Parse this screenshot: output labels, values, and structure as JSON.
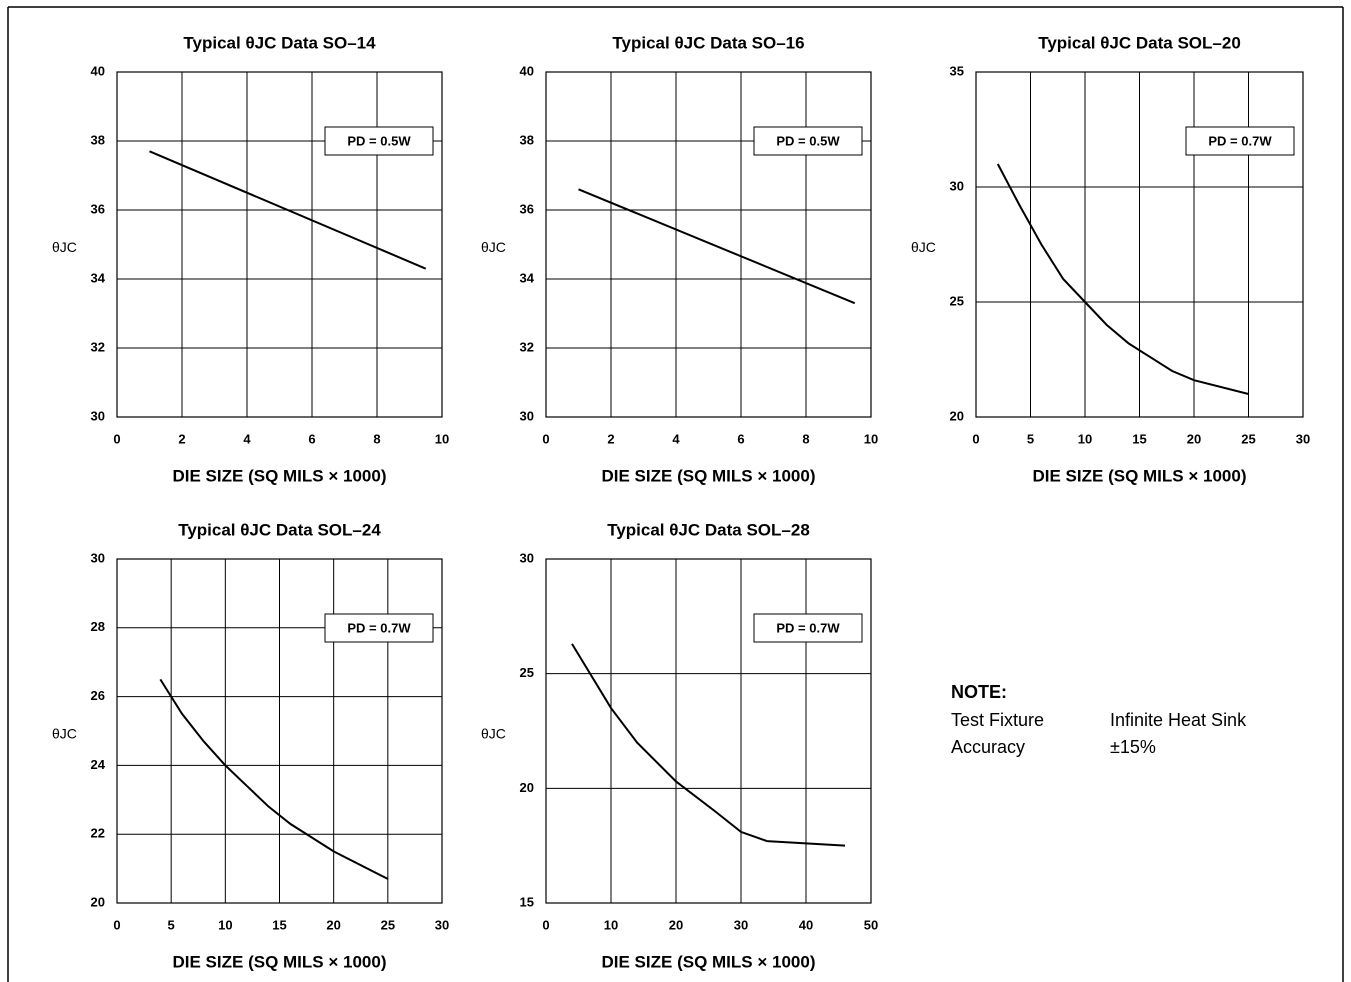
{
  "chart_data": [
    {
      "type": "line",
      "title": "Typical θJC Data SO–14",
      "xlabel": "DIE SIZE (SQ MILS × 1000)",
      "ylabel": "θJC",
      "annotation": "PD = 0.5W",
      "x": [
        1,
        9.5
      ],
      "series": [
        {
          "color": "#000000",
          "values": [
            37.7,
            34.3
          ]
        }
      ],
      "xlim": [
        0,
        10
      ],
      "xticks": [
        0,
        2,
        4,
        6,
        8,
        10
      ],
      "ylim": [
        30,
        40
      ],
      "yticks": [
        30,
        32,
        34,
        36,
        38,
        40
      ],
      "grid": true
    },
    {
      "type": "line",
      "title": "Typical θJC Data SO–16",
      "xlabel": "DIE SIZE (SQ MILS × 1000)",
      "ylabel": "θJC",
      "annotation": "PD = 0.5W",
      "x": [
        1,
        9.5
      ],
      "series": [
        {
          "color": "#000000",
          "values": [
            36.6,
            33.3
          ]
        }
      ],
      "xlim": [
        0,
        10
      ],
      "xticks": [
        0,
        2,
        4,
        6,
        8,
        10
      ],
      "ylim": [
        30,
        40
      ],
      "yticks": [
        30,
        32,
        34,
        36,
        38,
        40
      ],
      "grid": true
    },
    {
      "type": "line",
      "title": "Typical θJC Data SOL–20",
      "xlabel": "DIE SIZE (SQ MILS × 1000)",
      "ylabel": "θJC",
      "annotation": "PD = 0.7W",
      "x": [
        2,
        4,
        6,
        8,
        10,
        12,
        14,
        16,
        18,
        20,
        25
      ],
      "series": [
        {
          "color": "#000000",
          "values": [
            31,
            29.2,
            27.5,
            26,
            25,
            24,
            23.2,
            22.6,
            22,
            21.6,
            21
          ]
        }
      ],
      "xlim": [
        0,
        30
      ],
      "xticks": [
        0,
        5,
        10,
        15,
        20,
        25,
        30
      ],
      "ylim": [
        20,
        35
      ],
      "yticks": [
        20,
        25,
        30,
        35
      ],
      "grid": true
    },
    {
      "type": "line",
      "title": "Typical θJC Data SOL–24",
      "xlabel": "DIE SIZE (SQ MILS × 1000)",
      "ylabel": "θJC",
      "annotation": "PD = 0.7W",
      "x": [
        4,
        6,
        8,
        10,
        12,
        14,
        16,
        20,
        25
      ],
      "series": [
        {
          "color": "#000000",
          "values": [
            26.5,
            25.5,
            24.7,
            24,
            23.4,
            22.8,
            22.3,
            21.5,
            20.7
          ]
        }
      ],
      "xlim": [
        0,
        30
      ],
      "xticks": [
        0,
        5,
        10,
        15,
        20,
        25,
        30
      ],
      "ylim": [
        20,
        30
      ],
      "yticks": [
        20,
        22,
        24,
        26,
        28,
        30
      ],
      "grid": true
    },
    {
      "type": "line",
      "title": "Typical θJC Data SOL–28",
      "xlabel": "DIE SIZE (SQ MILS × 1000)",
      "ylabel": "θJC",
      "annotation": "PD = 0.7W",
      "x": [
        4,
        10,
        14,
        20,
        26,
        30,
        34,
        46
      ],
      "series": [
        {
          "color": "#000000",
          "values": [
            26.3,
            23.5,
            22,
            20.3,
            19,
            18.1,
            17.7,
            17.5
          ]
        }
      ],
      "xlim": [
        0,
        50
      ],
      "xticks": [
        0,
        10,
        20,
        30,
        40,
        50
      ],
      "ylim": [
        15,
        30
      ],
      "yticks": [
        15,
        20,
        25,
        30
      ],
      "grid": true
    }
  ],
  "note": {
    "title": "NOTE:",
    "rows": [
      [
        "Test Fixture",
        "Infinite Heat Sink"
      ],
      [
        "Accuracy",
        "±15%"
      ]
    ]
  }
}
